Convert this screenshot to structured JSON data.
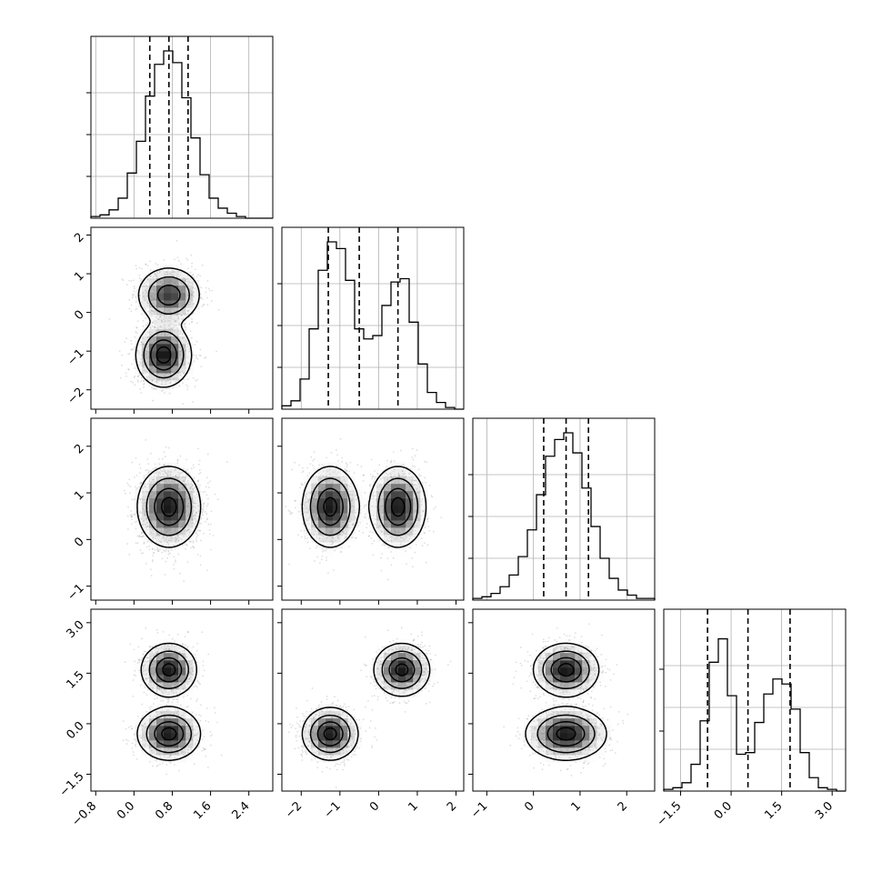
{
  "chart_data": {
    "type": "corner",
    "title": "",
    "dimensions": [
      {
        "index": 0,
        "range": [
          -0.9,
          2.9
        ],
        "ticks": [
          -0.8,
          0.0,
          0.8,
          1.6,
          2.4
        ],
        "tick_labels": [
          "−0.8",
          "0.0",
          "0.8",
          "1.6",
          "2.4"
        ],
        "quantiles": [
          0.33,
          0.73,
          1.13
        ],
        "histogram": {
          "bins": [
            -0.9,
            -0.71,
            -0.52,
            -0.33,
            -0.14,
            0.05,
            0.24,
            0.43,
            0.62,
            0.81,
            1.0,
            1.19,
            1.38,
            1.57,
            1.76,
            1.95,
            2.14,
            2.33,
            2.52,
            2.71,
            2.9
          ],
          "counts": [
            0.01,
            0.02,
            0.05,
            0.12,
            0.27,
            0.46,
            0.73,
            0.92,
            1.0,
            0.93,
            0.72,
            0.48,
            0.26,
            0.12,
            0.06,
            0.03,
            0.01,
            0.0,
            0.0,
            0.0
          ]
        }
      },
      {
        "index": 1,
        "range": [
          -2.5,
          2.2
        ],
        "ticks": [
          -2,
          -1,
          0,
          1,
          2
        ],
        "tick_labels": [
          "−2",
          "−1",
          "0",
          "1",
          "2"
        ],
        "quantiles": [
          -1.3,
          -0.5,
          0.5
        ],
        "histogram": {
          "bins": [
            -2.5,
            -2.265,
            -2.03,
            -1.795,
            -1.56,
            -1.325,
            -1.09,
            -0.855,
            -0.62,
            -0.385,
            -0.15,
            0.085,
            0.32,
            0.555,
            0.79,
            1.025,
            1.26,
            1.495,
            1.73,
            1.965,
            2.2
          ],
          "counts": [
            0.02,
            0.05,
            0.18,
            0.48,
            0.83,
            1.0,
            0.96,
            0.77,
            0.48,
            0.42,
            0.44,
            0.62,
            0.76,
            0.78,
            0.52,
            0.27,
            0.1,
            0.04,
            0.01,
            0.0
          ]
        }
      },
      {
        "index": 2,
        "range": [
          -1.3,
          2.6
        ],
        "ticks": [
          -1,
          0,
          1,
          2
        ],
        "tick_labels": [
          "−1",
          "0",
          "1",
          "2"
        ],
        "quantiles": [
          0.22,
          0.7,
          1.18
        ],
        "histogram": {
          "bins": [
            -1.3,
            -1.105,
            -0.91,
            -0.715,
            -0.52,
            -0.325,
            -0.13,
            0.065,
            0.26,
            0.455,
            0.65,
            0.845,
            1.04,
            1.235,
            1.43,
            1.625,
            1.82,
            2.015,
            2.21,
            2.405,
            2.6
          ],
          "counts": [
            0.01,
            0.02,
            0.04,
            0.08,
            0.15,
            0.26,
            0.42,
            0.63,
            0.86,
            0.96,
            1.0,
            0.88,
            0.67,
            0.44,
            0.25,
            0.13,
            0.06,
            0.03,
            0.01,
            0.01
          ]
        }
      },
      {
        "index": 3,
        "range": [
          -2.0,
          3.4
        ],
        "ticks": [
          -1.5,
          0.0,
          1.5,
          3.0
        ],
        "tick_labels": [
          "−1.5",
          "0.0",
          "1.5",
          "3.0"
        ],
        "quantiles": [
          -0.7,
          0.5,
          1.75
        ],
        "histogram": {
          "bins": [
            -2.0,
            -1.73,
            -1.46,
            -1.19,
            -0.92,
            -0.65,
            -0.38,
            -0.11,
            0.16,
            0.43,
            0.7,
            0.97,
            1.24,
            1.51,
            1.78,
            2.05,
            2.32,
            2.59,
            2.86,
            3.13,
            3.4
          ],
          "counts": [
            0.01,
            0.02,
            0.05,
            0.16,
            0.42,
            0.77,
            0.91,
            0.57,
            0.22,
            0.23,
            0.41,
            0.58,
            0.67,
            0.64,
            0.49,
            0.23,
            0.08,
            0.02,
            0.01,
            0.0
          ]
        }
      }
    ],
    "grid": true,
    "quantile_style": "dashed",
    "pair_panels": [
      {
        "x_dim": 0,
        "y_dim": 1,
        "modes": [
          {
            "x": 0.62,
            "y": -1.1,
            "sx": 0.28,
            "sy": 0.4,
            "w": 0.55
          },
          {
            "x": 0.73,
            "y": 0.45,
            "sx": 0.32,
            "sy": 0.35,
            "w": 0.45
          }
        ]
      },
      {
        "x_dim": 0,
        "y_dim": 2,
        "modes": [
          {
            "x": 0.73,
            "y": 0.7,
            "sx": 0.32,
            "sy": 0.42,
            "w": 1.0
          }
        ]
      },
      {
        "x_dim": 1,
        "y_dim": 2,
        "modes": [
          {
            "x": -1.25,
            "y": 0.7,
            "sx": 0.35,
            "sy": 0.42,
            "w": 0.5
          },
          {
            "x": 0.5,
            "y": 0.7,
            "sx": 0.35,
            "sy": 0.42,
            "w": 0.5
          }
        ]
      },
      {
        "x_dim": 0,
        "y_dim": 3,
        "modes": [
          {
            "x": 0.73,
            "y": -0.3,
            "sx": 0.32,
            "sy": 0.38,
            "w": 0.5
          },
          {
            "x": 0.73,
            "y": 1.6,
            "sx": 0.28,
            "sy": 0.38,
            "w": 0.5
          }
        ]
      },
      {
        "x_dim": 1,
        "y_dim": 3,
        "modes": [
          {
            "x": -1.25,
            "y": -0.3,
            "sx": 0.35,
            "sy": 0.38,
            "w": 0.5
          },
          {
            "x": 0.6,
            "y": 1.6,
            "sx": 0.35,
            "sy": 0.38,
            "w": 0.5
          }
        ]
      },
      {
        "x_dim": 2,
        "y_dim": 3,
        "modes": [
          {
            "x": 0.7,
            "y": -0.3,
            "sx": 0.42,
            "sy": 0.38,
            "w": 0.5
          },
          {
            "x": 0.7,
            "y": 1.6,
            "sx": 0.34,
            "sy": 0.38,
            "w": 0.5
          }
        ]
      }
    ]
  }
}
